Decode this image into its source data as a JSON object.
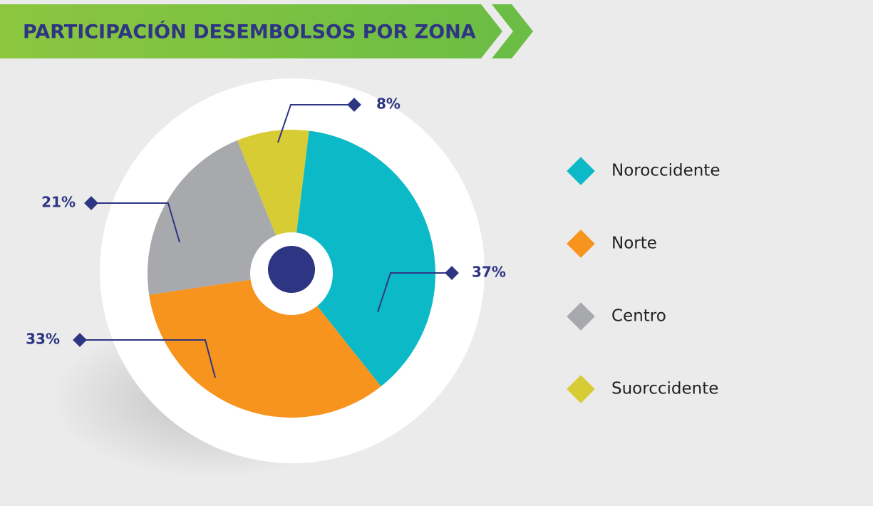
{
  "chart_data": {
    "type": "pie",
    "title": "PARTICIPACIÓN DESEMBOLSOS POR ZONA",
    "categories": [
      "Noroccidente",
      "Norte",
      "Centro",
      "Suorccidente"
    ],
    "values": [
      37,
      33,
      21,
      8
    ],
    "value_labels": [
      "37%",
      "33%",
      "21%",
      "8%"
    ],
    "colors": [
      "#0bbac6",
      "#f7941d",
      "#a7a9ac",
      "#d8cc35"
    ]
  }
}
